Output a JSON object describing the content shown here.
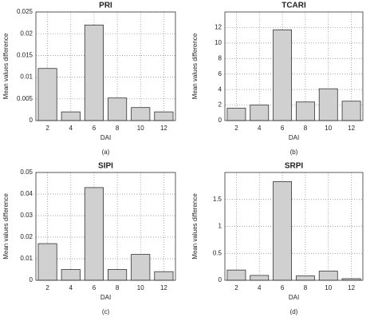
{
  "chart_data": [
    {
      "type": "bar",
      "title": "PRI",
      "caption": "(a)",
      "x_label": "DAI",
      "y_label": "Mean values difference",
      "categories": [
        "2",
        "4",
        "6",
        "8",
        "10",
        "12"
      ],
      "values": [
        0.012,
        0.002,
        0.022,
        0.0052,
        0.003,
        0.002
      ],
      "color": "#d0d0d0",
      "ylim": [
        0,
        0.025
      ],
      "yticks": [
        0,
        0.005,
        0.01,
        0.015,
        0.02,
        0.025
      ],
      "grid": true
    },
    {
      "type": "bar",
      "title": "TCARI",
      "caption": "(b)",
      "x_label": "DAI",
      "y_label": "Mean values difference",
      "categories": [
        "2",
        "4",
        "6",
        "8",
        "10",
        "12"
      ],
      "values": [
        1.6,
        2.0,
        11.7,
        2.4,
        4.1,
        2.5
      ],
      "color": "#d0d0d0",
      "ylim": [
        0,
        14
      ],
      "yticks": [
        0,
        2,
        4,
        6,
        8,
        10,
        12
      ],
      "grid": true
    },
    {
      "type": "bar",
      "title": "SIPI",
      "caption": "(c)",
      "x_label": "DAI",
      "y_label": "Mean values difference",
      "categories": [
        "2",
        "4",
        "6",
        "8",
        "10",
        "12"
      ],
      "values": [
        0.017,
        0.005,
        0.043,
        0.005,
        0.012,
        0.004
      ],
      "color": "#d0d0d0",
      "ylim": [
        0,
        0.05
      ],
      "yticks": [
        0,
        0.01,
        0.02,
        0.03,
        0.04,
        0.05
      ],
      "grid": true
    },
    {
      "type": "bar",
      "title": "SRPI",
      "caption": "(d)",
      "x_label": "DAI",
      "y_label": "Mean values difference",
      "categories": [
        "2",
        "4",
        "6",
        "8",
        "10",
        "12"
      ],
      "values": [
        0.19,
        0.09,
        1.83,
        0.08,
        0.17,
        0.03
      ],
      "color": "#d0d0d0",
      "ylim": [
        0,
        2
      ],
      "yticks": [
        0,
        0.5,
        1,
        1.5
      ],
      "grid": true
    }
  ]
}
